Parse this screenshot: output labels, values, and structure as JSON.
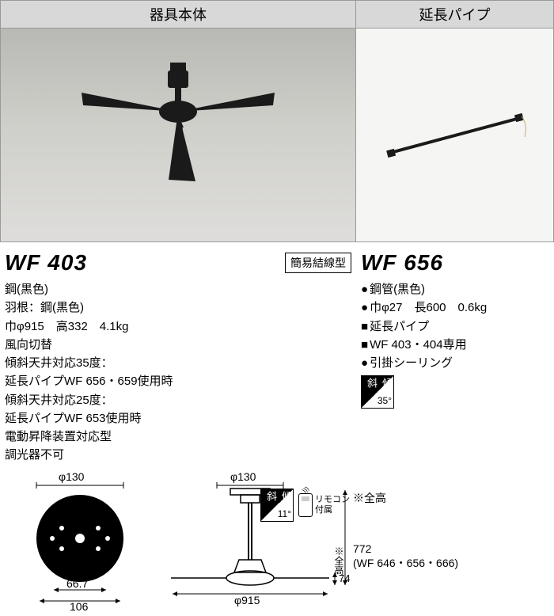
{
  "header": {
    "main": "器具本体",
    "ext": "延長パイプ"
  },
  "main": {
    "model": "WF 403",
    "conn_badge": "簡易結線型",
    "slant": {
      "label": "傾\n斜",
      "angle": "11°"
    },
    "remote": "リモコン\n付属",
    "specs": [
      "鋼(黒色)",
      "羽根：鋼(黒色)",
      "巾φ915　高332　4.1kg",
      "風向切替",
      "傾斜天井対応35度：",
      "延長パイプWF 656・659使用時",
      "傾斜天井対応25度：",
      "延長パイプWF 653使用時",
      "電動昇降装置対応型",
      "調光器不可"
    ]
  },
  "ext": {
    "model": "WF 656",
    "specs": [
      {
        "t": "b",
        "v": "鋼管(黒色)"
      },
      {
        "t": "b",
        "v": "巾φ27　長600　0.6kg"
      },
      {
        "t": "s",
        "v": "延長パイプ"
      },
      {
        "t": "s",
        "v": "WF 403・404専用"
      },
      {
        "t": "b",
        "v": "引掛シーリング"
      }
    ],
    "slant": {
      "label": "傾\n斜",
      "angle": "35°"
    }
  },
  "diagram": {
    "top": {
      "phi130a": "φ130",
      "phi130b": "φ130"
    },
    "dims": {
      "w667": "66.7",
      "w106": "106",
      "h74": "74",
      "phi915": "φ915"
    },
    "note_zen": "※全高",
    "note_zen_v": "※全高",
    "height_val": "772",
    "height_models": "(WF 646・656・666)"
  },
  "colors": {
    "product": "#1a1a1a",
    "header_bg": "#d8d8d8",
    "bg_main": "#c8c8c3"
  }
}
